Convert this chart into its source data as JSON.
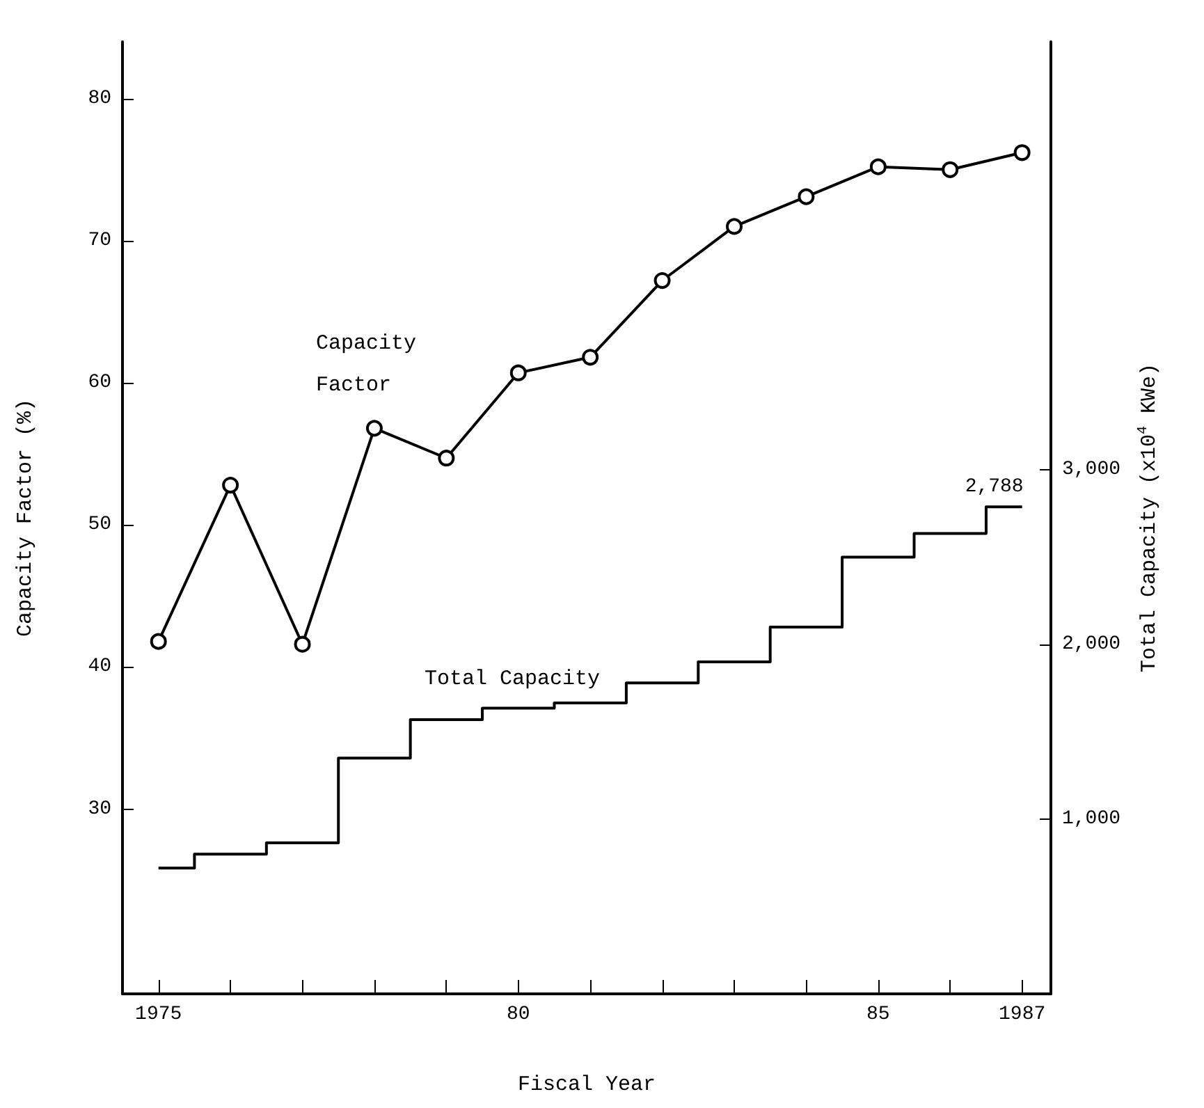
{
  "chart_data": {
    "type": "line",
    "xlabel": "Fiscal Year",
    "ylabel": "Capacity Factor (%)",
    "y2label": "Total Capacity (x10$^{4}$ KWe)",
    "x": [
      1975,
      1976,
      1977,
      1978,
      1979,
      1980,
      1981,
      1982,
      1983,
      1984,
      1985,
      1986,
      1987
    ],
    "series": [
      {
        "name": "Capacity Factor",
        "type": "line",
        "color": "#000000",
        "marker": "circle",
        "values": [
          41.8,
          52.8,
          41.6,
          56.8,
          54.7,
          60.7,
          61.8,
          67.2,
          71.0,
          73.1,
          75.2,
          75.0,
          76.2
        ]
      },
      {
        "name": "Total Capacity",
        "type": "step",
        "axis": "y2",
        "color": "#000000",
        "marker": "none",
        "values": [
          720,
          800,
          865,
          1350,
          1570,
          1635,
          1665,
          1780,
          1900,
          2100,
          2500,
          2635,
          2788
        ],
        "value_labels": [
          null,
          null,
          null,
          null,
          null,
          null,
          null,
          null,
          null,
          null,
          null,
          null,
          "2,788"
        ]
      }
    ],
    "xlim": [
      1974.5,
      1987.4
    ],
    "xticks": [
      1975,
      {
        "value": 1976,
        "label": null
      },
      {
        "value": 1977,
        "label": null
      },
      {
        "value": 1978,
        "label": null
      },
      {
        "value": 1979,
        "label": null
      },
      {
        "value": 1980,
        "label": "80"
      },
      {
        "value": 1981,
        "label": null
      },
      {
        "value": 1982,
        "label": null
      },
      {
        "value": 1983,
        "label": null
      },
      {
        "value": 1984,
        "label": null
      },
      {
        "value": 1985,
        "label": "85"
      },
      {
        "value": 1986,
        "label": null
      },
      1987
    ],
    "ylim": [
      17,
      84
    ],
    "yticks": [
      30,
      40,
      50,
      60,
      70,
      80
    ],
    "y2lim": [
      0,
      5450
    ],
    "y2ticks": [
      {
        "value": 1000,
        "label": "1,000"
      },
      {
        "value": 2000,
        "label": "2,000"
      },
      {
        "value": 3000,
        "label": "3,000"
      }
    ],
    "grid": false,
    "legend": false
  }
}
